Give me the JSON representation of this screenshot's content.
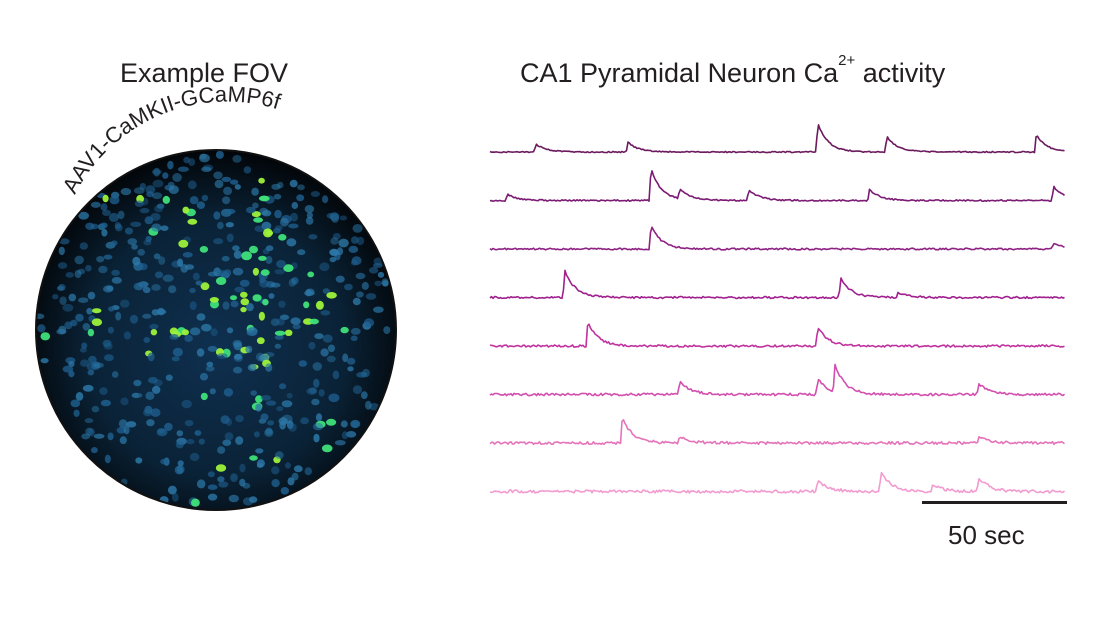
{
  "fov": {
    "title": "Example FOV",
    "virus_label": "AAV1-CaMKII-GCaMP6f"
  },
  "traces": {
    "title_prefix": "CA1 Pyramidal Neuron Ca",
    "title_superscript": "2+",
    "title_suffix": " activity",
    "colors": [
      "#6b1a5e",
      "#7c1b74",
      "#8e2283",
      "#a0208e",
      "#c0329f",
      "#d24fae",
      "#e473b9",
      "#f29bd0"
    ],
    "events": [
      [
        [
          0.08,
          0.25
        ],
        [
          0.24,
          0.3
        ],
        [
          0.57,
          0.9
        ],
        [
          0.69,
          0.5
        ],
        [
          0.95,
          0.55
        ]
      ],
      [
        [
          0.03,
          0.2
        ],
        [
          0.28,
          1.0
        ],
        [
          0.33,
          0.3
        ],
        [
          0.45,
          0.35
        ],
        [
          0.66,
          0.35
        ],
        [
          0.98,
          0.45
        ]
      ],
      [
        [
          0.28,
          0.75
        ],
        [
          0.98,
          0.2
        ]
      ],
      [
        [
          0.13,
          0.85
        ],
        [
          0.61,
          0.6
        ],
        [
          0.71,
          0.15
        ]
      ],
      [
        [
          0.17,
          0.75
        ],
        [
          0.57,
          0.6
        ]
      ],
      [
        [
          0.33,
          0.45
        ],
        [
          0.57,
          0.5
        ],
        [
          0.6,
          0.85
        ],
        [
          0.85,
          0.35
        ]
      ],
      [
        [
          0.23,
          0.8
        ],
        [
          0.33,
          0.2
        ],
        [
          0.85,
          0.2
        ]
      ],
      [
        [
          0.57,
          0.35
        ],
        [
          0.68,
          0.6
        ],
        [
          0.77,
          0.2
        ],
        [
          0.85,
          0.45
        ]
      ]
    ]
  },
  "scale_bar": {
    "label": "50 sec"
  }
}
